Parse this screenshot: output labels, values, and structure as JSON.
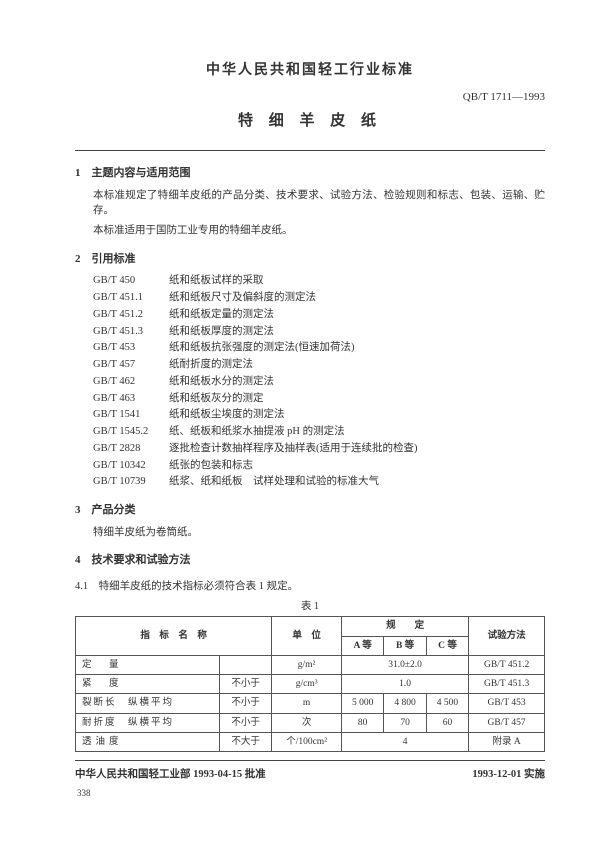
{
  "header": {
    "org_title": "中华人民共和国轻工行业标准",
    "doc_code": "QB/T 1711—1993",
    "doc_title": "特 细 羊 皮 纸"
  },
  "s1": {
    "heading": "1　主题内容与适用范围",
    "p1": "本标准规定了特细羊皮纸的产品分类、技术要求、试验方法、检验规则和标志、包装、运输、贮存。",
    "p2": "本标准适用于国防工业专用的特细羊皮纸。"
  },
  "s2": {
    "heading": "2　引用标准",
    "refs": [
      {
        "code": "GB/T 450",
        "title": "纸和纸板试样的采取"
      },
      {
        "code": "GB/T 451.1",
        "title": "纸和纸板尺寸及偏斜度的测定法"
      },
      {
        "code": "GB/T 451.2",
        "title": "纸和纸板定量的测定法"
      },
      {
        "code": "GB/T 451.3",
        "title": "纸和纸板厚度的测定法"
      },
      {
        "code": "GB/T 453",
        "title": "纸和纸板抗张强度的测定法(恒速加荷法)"
      },
      {
        "code": "GB/T 457",
        "title": "纸耐折度的测定法"
      },
      {
        "code": "GB/T 462",
        "title": "纸和纸板水分的测定法"
      },
      {
        "code": "GB/T 463",
        "title": "纸和纸板灰分的测定"
      },
      {
        "code": "GB/T 1541",
        "title": "纸和纸板尘埃度的测定法"
      },
      {
        "code": "GB/T 1545.2",
        "title": "纸、纸板和纸浆水抽提液 pH 的测定法"
      },
      {
        "code": "GB/T 2828",
        "title": "逐批检查计数抽样程序及抽样表(适用于连续批的检查)"
      },
      {
        "code": "GB/T 10342",
        "title": "纸张的包装和标志"
      },
      {
        "code": "GB/T 10739",
        "title": "纸浆、纸和纸板　试样处理和试验的标准大气"
      }
    ]
  },
  "s3": {
    "heading": "3　产品分类",
    "p1": "特细羊皮纸为卷筒纸。"
  },
  "s4": {
    "heading": "4　技术要求和试验方法",
    "sub": "4.1　特细羊皮纸的技术指标必须符合表 1 规定。",
    "caption": "表 1"
  },
  "table": {
    "h_name": "指　标　名　称",
    "h_unit": "单　位",
    "h_spec": "规　　定",
    "h_a": "A 等",
    "h_b": "B 等",
    "h_c": "C 等",
    "h_method": "试验方法",
    "r1": {
      "name": "定　量",
      "cond": "",
      "unit": "g/m²",
      "val": "31.0±2.0",
      "method": "GB/T 451.2"
    },
    "r2": {
      "name": "紧　度",
      "cond": "不小于",
      "unit": "g/cm³",
      "val": "1.0",
      "method": "GB/T 451.3"
    },
    "r3": {
      "name": "裂断长　纵横平均",
      "cond": "不小于",
      "unit": "m",
      "a": "5 000",
      "b": "4 800",
      "c": "4 500",
      "method": "GB/T 453"
    },
    "r4": {
      "name": "耐折度　纵横平均",
      "cond": "不小于",
      "unit": "次",
      "a": "80",
      "b": "70",
      "c": "60",
      "method": "GB/T 457"
    },
    "r5": {
      "name": "透油度",
      "cond": "不大于",
      "unit": "个/100cm²",
      "val": "4",
      "method": "附录 A"
    }
  },
  "footer": {
    "left": "中华人民共和国轻工业部 1993-04-15 批准",
    "right": "1993-12-01 实施",
    "page": "338"
  }
}
